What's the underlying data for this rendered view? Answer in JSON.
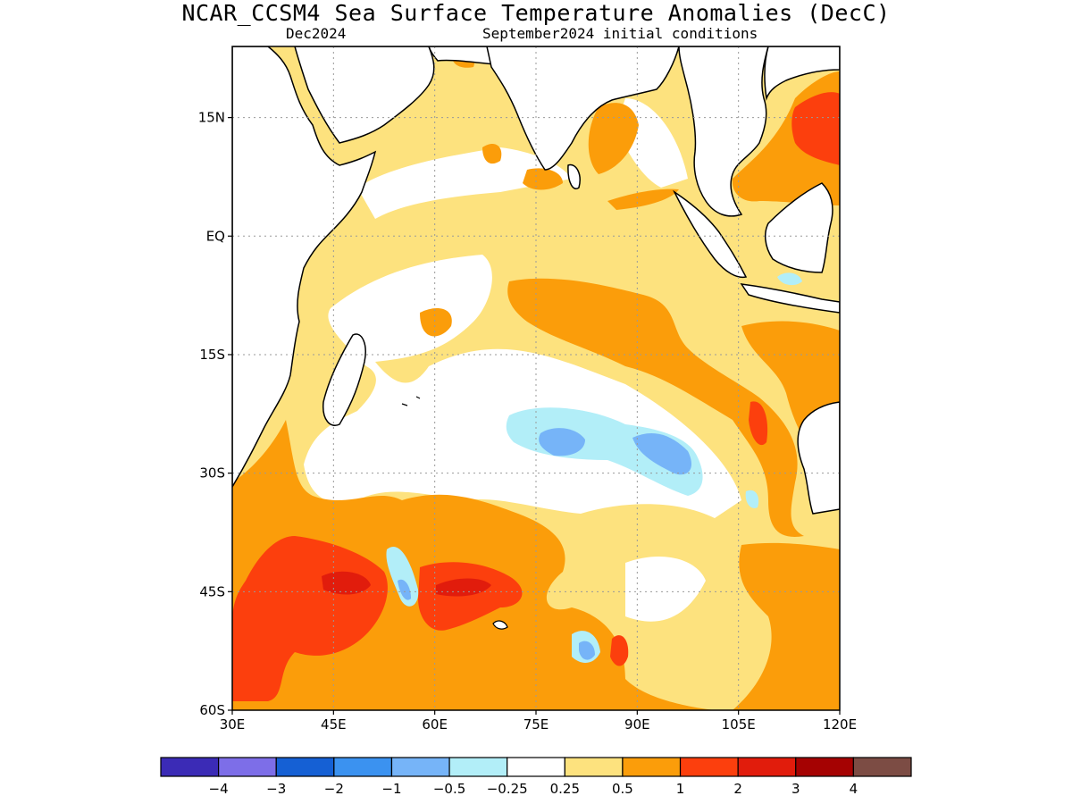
{
  "title": "NCAR_CCSM4 Sea Surface Temperature Anomalies (DecC)",
  "subtitle_left": "Dec2024",
  "subtitle_right": "September2024 initial conditions",
  "map": {
    "lon_range": [
      30,
      120
    ],
    "lat_range": [
      -60,
      24
    ],
    "x_ticks": [
      {
        "value": 30,
        "label": "30E"
      },
      {
        "value": 45,
        "label": "45E"
      },
      {
        "value": 60,
        "label": "60E"
      },
      {
        "value": 75,
        "label": "75E"
      },
      {
        "value": 90,
        "label": "90E"
      },
      {
        "value": 105,
        "label": "105E"
      },
      {
        "value": 120,
        "label": "120E"
      }
    ],
    "y_ticks": [
      {
        "value": 15,
        "label": "15N"
      },
      {
        "value": 0,
        "label": "EQ"
      },
      {
        "value": -15,
        "label": "15S"
      },
      {
        "value": -30,
        "label": "30S"
      },
      {
        "value": -45,
        "label": "45S"
      },
      {
        "value": -60,
        "label": "60S"
      }
    ],
    "grid": true
  },
  "colorbar": {
    "colors": [
      "#3b2bb6",
      "#7d6ee8",
      "#1560d4",
      "#3b92f0",
      "#76b4f8",
      "#b2eef8",
      "#ffffff",
      "#fde27e",
      "#fb9d0a",
      "#fc3f0d",
      "#e11c0c",
      "#a50202",
      "#7c4c44"
    ],
    "labels": [
      "-4",
      "-3",
      "-2",
      "-1",
      "-0.5",
      "-0.25",
      "0.25",
      "0.5",
      "1",
      "2",
      "3",
      "4"
    ]
  }
}
